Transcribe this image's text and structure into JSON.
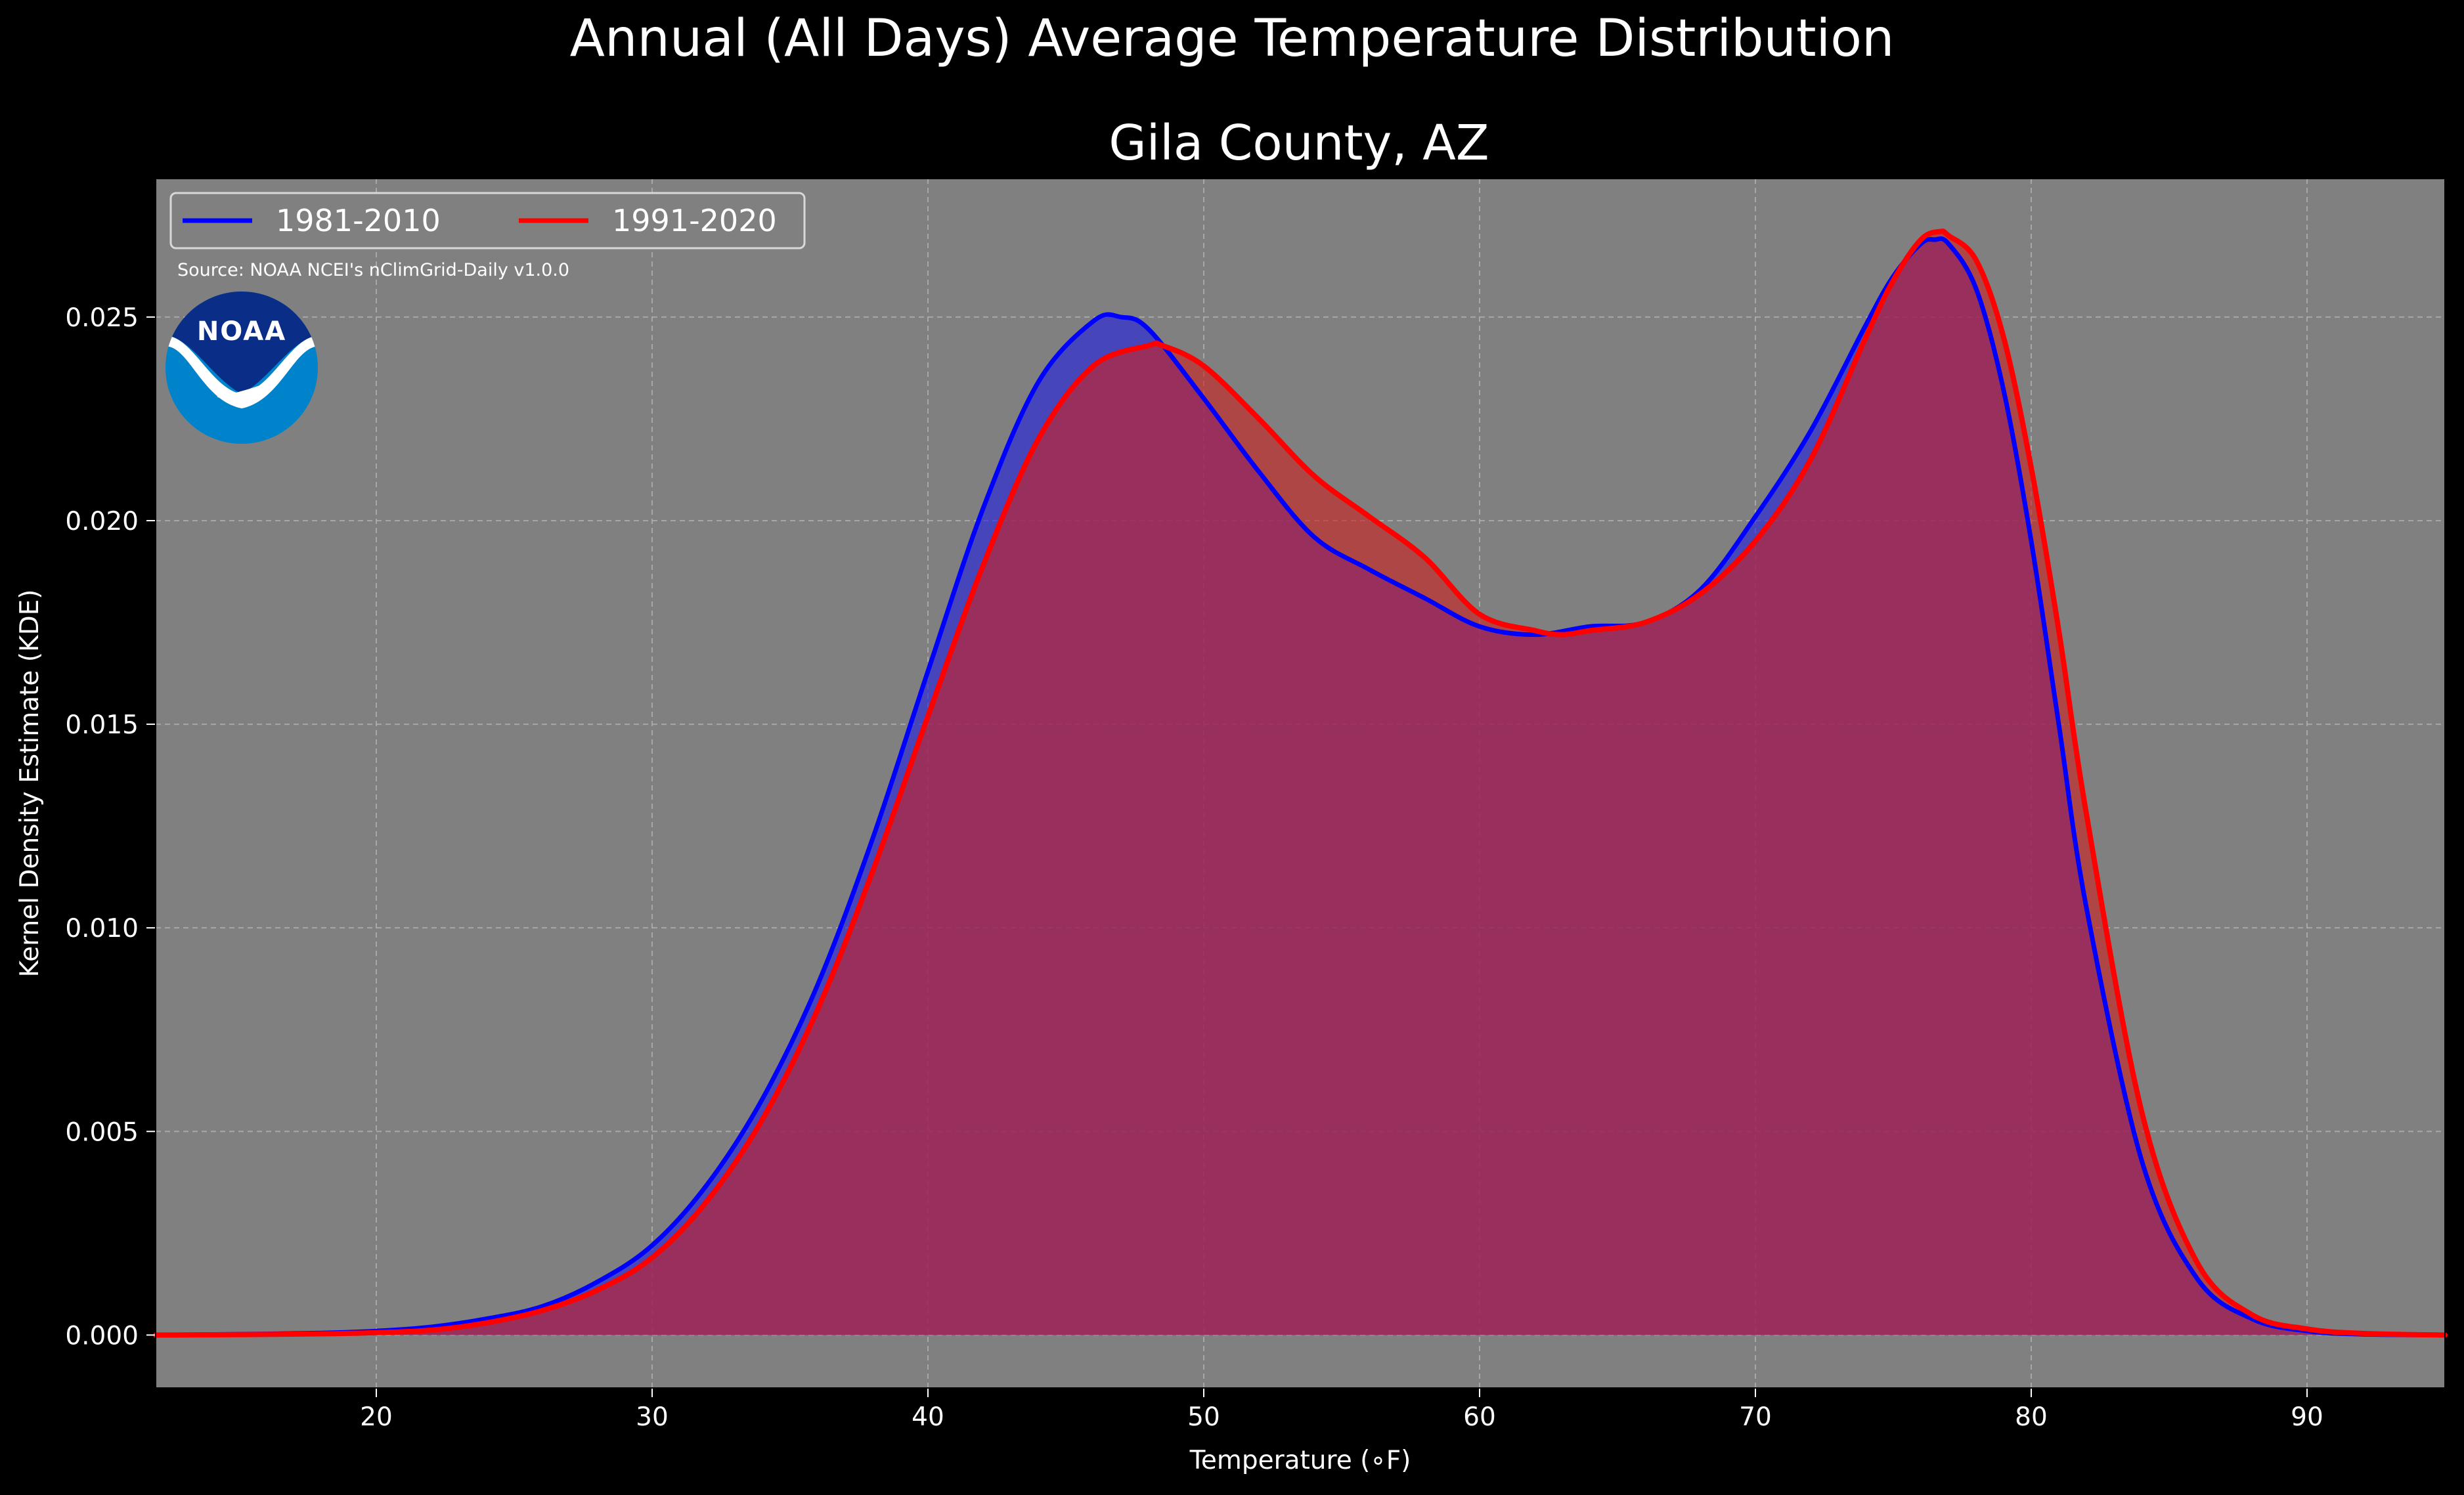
{
  "chart_data": {
    "type": "area",
    "title": "Annual (All Days) Average Temperature Distribution",
    "subtitle": "Gila County, AZ",
    "xlabel": "Temperature (∘F)",
    "ylabel": "Kernel Density Estimate (KDE)",
    "xlim": [
      12,
      95
    ],
    "ylim": [
      -0.0013,
      0.0284
    ],
    "xticks": [
      20,
      30,
      40,
      50,
      60,
      70,
      80,
      90
    ],
    "yticks": [
      0.0,
      0.005,
      0.01,
      0.015,
      0.02,
      0.025
    ],
    "ytick_labels": [
      "0.000",
      "0.005",
      "0.010",
      "0.015",
      "0.020",
      "0.025"
    ],
    "grid": true,
    "legend_position": "upper-left",
    "source_note": "Source: NOAA NCEI's nClimGrid-Daily v1.0.0",
    "logo_text": "NOAA",
    "series": [
      {
        "name": "1981-2010",
        "line_color": "#0000ff",
        "fill_color": "#2222dd",
        "x": [
          12,
          15,
          18,
          20,
          22,
          24,
          26,
          28,
          30,
          32,
          34,
          36,
          38,
          40,
          42,
          44,
          46,
          47,
          48,
          50,
          52,
          54,
          56,
          58,
          60,
          62,
          64,
          66,
          68,
          70,
          72,
          74,
          75,
          76,
          76.5,
          77,
          78,
          79,
          80,
          81,
          82,
          84,
          86,
          88,
          90,
          92,
          95
        ],
        "y": [
          0.0,
          2e-05,
          5e-05,
          0.0001,
          0.0002,
          0.0004,
          0.0007,
          0.0013,
          0.0022,
          0.0037,
          0.0058,
          0.0086,
          0.0122,
          0.0163,
          0.0203,
          0.0234,
          0.0249,
          0.025,
          0.0247,
          0.023,
          0.0212,
          0.0196,
          0.0188,
          0.0181,
          0.0174,
          0.0172,
          0.0174,
          0.0175,
          0.0183,
          0.0201,
          0.0222,
          0.0248,
          0.026,
          0.0268,
          0.0269,
          0.0268,
          0.0257,
          0.0232,
          0.0195,
          0.015,
          0.0105,
          0.0043,
          0.0014,
          0.0004,
          0.0001,
          2e-05,
          0.0
        ]
      },
      {
        "name": "1991-2020",
        "line_color": "#ff0000",
        "fill_color": "#cc2222",
        "x": [
          12,
          15,
          18,
          20,
          22,
          24,
          26,
          28,
          30,
          32,
          34,
          36,
          38,
          40,
          42,
          44,
          46,
          48,
          48.5,
          50,
          52,
          54,
          56,
          58,
          60,
          62,
          63,
          64,
          66,
          68,
          70,
          72,
          74,
          75,
          76,
          76.7,
          77,
          78,
          79,
          80,
          81,
          82,
          84,
          86,
          88,
          90,
          92,
          95
        ],
        "y": [
          0.0,
          1e-05,
          3e-05,
          6e-05,
          0.00012,
          0.0003,
          0.0006,
          0.0011,
          0.0019,
          0.0033,
          0.0053,
          0.008,
          0.0114,
          0.0152,
          0.0189,
          0.022,
          0.0238,
          0.0243,
          0.0243,
          0.0238,
          0.0225,
          0.0211,
          0.0201,
          0.0191,
          0.0177,
          0.0173,
          0.0172,
          0.0173,
          0.0175,
          0.0182,
          0.0195,
          0.0215,
          0.0245,
          0.0259,
          0.0269,
          0.0271,
          0.027,
          0.0264,
          0.0245,
          0.0213,
          0.0173,
          0.0128,
          0.0055,
          0.0018,
          0.0005,
          0.00015,
          4e-05,
          0.0
        ]
      }
    ]
  },
  "colors": {
    "figure_background": "#000000",
    "plot_background": "#808080",
    "grid": "#b4b4b4",
    "overlap_fill": "#9b1d5d",
    "logo_dark_blue": "#0a2d87",
    "logo_light_blue": "#0083cb"
  }
}
